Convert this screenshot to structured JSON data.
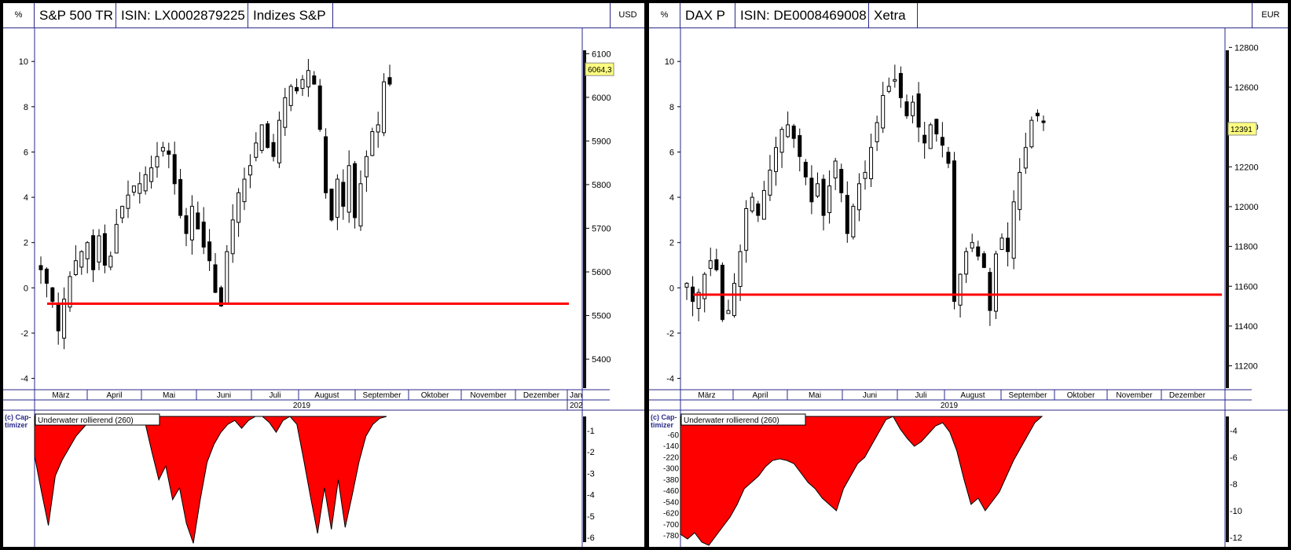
{
  "months": [
    "März",
    "April",
    "Mai",
    "Juni",
    "Juli",
    "August",
    "September",
    "Oktober",
    "November",
    "Dezember"
  ],
  "year": "2019",
  "copyright": [
    "(c) Cap-",
    "timizer"
  ],
  "panels": [
    {
      "header": {
        "percent": "%",
        "name": "S&P 500 TR",
        "isin": "ISIN: LX0002879225",
        "exchange": "Indizes S&P",
        "currency": "USD"
      },
      "left_axis_ticks": [
        -4,
        -2,
        0,
        2,
        4,
        6,
        8,
        10
      ],
      "right_axis_ticks": [
        5400,
        5500,
        5600,
        5700,
        5800,
        5900,
        6000,
        6100
      ],
      "last_price": "6064,3",
      "reference_line_pct": -0.7,
      "month_extra": "Jan",
      "year_extra": "202",
      "indicator_label": "Underwater rollierend (260)",
      "indicator_left_ticks": [],
      "indicator_right_ticks": [
        -1,
        -2,
        -3,
        -4,
        -5,
        -6
      ],
      "accent_red": "#ff0000"
    },
    {
      "header": {
        "percent": "%",
        "name": "DAX P",
        "isin": "ISIN: DE0008469008",
        "exchange": "Xetra",
        "currency": "EUR"
      },
      "left_axis_ticks": [
        -4,
        -2,
        0,
        2,
        4,
        6,
        8,
        10
      ],
      "right_axis_ticks": [
        11200,
        11400,
        11600,
        11800,
        12000,
        12200,
        12400,
        12600,
        12800
      ],
      "last_price": "12391",
      "reference_line_pct": -0.3,
      "month_extra": "",
      "year_extra": "",
      "indicator_label": "Underwater rollierend (260)",
      "indicator_left_ticks": [
        -60,
        -140,
        -220,
        -300,
        -380,
        -460,
        -540,
        -620,
        -700,
        -780
      ],
      "indicator_right_ticks": [
        -4,
        -6,
        -8,
        -10,
        -12
      ],
      "accent_red": "#ff0000"
    }
  ],
  "chart_data": [
    {
      "type": "candlestick",
      "title": "S&P 500 TR",
      "y_unit_left": "%",
      "y_unit_right": "USD",
      "ylim_pct": [
        -4.5,
        11.5
      ],
      "x_range": "2019-02-20 to 2019-09-20",
      "close_pct": [
        0.8,
        0.2,
        -0.6,
        -1.9,
        -0.5,
        0.5,
        1.2,
        1.6,
        2.0,
        0.8,
        2.3,
        1.0,
        1.4,
        2.8,
        3.6,
        4.1,
        4.5,
        4.6,
        5.0,
        5.3,
        5.8,
        6.2,
        5.9,
        4.6,
        3.2,
        2.4,
        3.6,
        2.6,
        1.8,
        1.2,
        -0.2,
        -0.8,
        1.6,
        3.0,
        4.2,
        4.8,
        5.4,
        6.4,
        7.2,
        6.2,
        5.8,
        7.4,
        8.4,
        8.9,
        8.7,
        9.2,
        9.6,
        9.0,
        7.0,
        4.2,
        3.0,
        4.8,
        3.6,
        5.4,
        3.1,
        4.6,
        5.8,
        6.9,
        7.2,
        9.1,
        9.0
      ],
      "reference_line_pct": -0.7,
      "last_price": 6064.3,
      "indicator": {
        "name": "Underwater rollierend (260)",
        "ylim": [
          -6.5,
          0
        ],
        "values": [
          -2.0,
          -3.8,
          -5.5,
          -3.0,
          -2.2,
          -1.6,
          -1.0,
          -0.6,
          -0.2,
          0,
          0,
          0,
          0,
          0,
          0,
          0,
          -0.3,
          -1.8,
          -3.2,
          -2.5,
          -4.2,
          -3.6,
          -5.4,
          -6.4,
          -4.2,
          -2.3,
          -1.4,
          -0.8,
          -0.4,
          -0.2,
          -0.6,
          -0.2,
          0,
          0,
          -0.3,
          -0.8,
          -0.2,
          0,
          -0.4,
          -2.2,
          -4.1,
          -5.9,
          -3.6,
          -5.7,
          -3.2,
          -5.6,
          -4.0,
          -2.3,
          -1.0,
          -0.4,
          -0.1,
          0
        ]
      }
    },
    {
      "type": "candlestick",
      "title": "DAX P",
      "y_unit_left": "%",
      "y_unit_right": "EUR",
      "ylim_pct": [
        -4.5,
        11.5
      ],
      "x_range": "2019-02-20 to 2019-09-20",
      "close_pct": [
        0.2,
        -0.6,
        -0.2,
        0.6,
        1.2,
        0.8,
        -1.4,
        -1.0,
        0.2,
        1.6,
        3.5,
        4.0,
        3.2,
        4.3,
        5.2,
        6.2,
        7.0,
        7.2,
        6.6,
        5.8,
        4.9,
        3.8,
        4.6,
        3.2,
        4.5,
        5.6,
        4.2,
        2.4,
        3.6,
        4.6,
        5.1,
        6.2,
        7.3,
        8.5,
        8.9,
        9.2,
        8.4,
        7.6,
        8.2,
        7.1,
        6.4,
        7.2,
        6.8,
        6.3,
        5.5,
        -0.6,
        0.6,
        1.6,
        2.0,
        1.4,
        0.9,
        -1.0,
        1.5,
        2.2,
        1.6,
        3.8,
        5.1,
        6.2,
        7.4,
        7.6,
        7.3
      ],
      "reference_line_pct": -0.3,
      "last_price": 12391,
      "indicator": {
        "name": "Underwater rollierend (260)",
        "ylim": [
          -820,
          0
        ],
        "values": [
          -750,
          -780,
          -740,
          -800,
          -820,
          -760,
          -700,
          -640,
          -560,
          -460,
          -420,
          -380,
          -320,
          -280,
          -270,
          -280,
          -300,
          -360,
          -420,
          -460,
          -520,
          -560,
          -600,
          -460,
          -380,
          -300,
          -260,
          -180,
          -100,
          -20,
          0,
          -80,
          -140,
          -190,
          -160,
          -110,
          -60,
          -40,
          -100,
          -220,
          -400,
          -560,
          -520,
          -600,
          -540,
          -480,
          -380,
          -280,
          -200,
          -120,
          -40,
          0
        ]
      }
    }
  ]
}
